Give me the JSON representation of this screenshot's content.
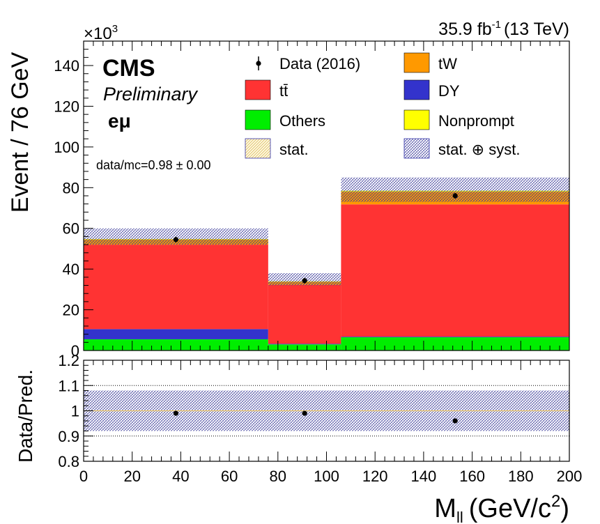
{
  "header": {
    "lumi_value": "35.9 fb",
    "lumi_exp": "-1",
    "energy": "(13 TeV)",
    "multiplier_prefix": "×10",
    "multiplier_exp": "3",
    "cms": "CMS",
    "preliminary": "Preliminary",
    "channel": "eμ",
    "ratio_text": "data/mc=0.98 ± 0.00"
  },
  "legend": [
    {
      "key": "data",
      "label": "Data (2016)",
      "style": "marker",
      "color": "#000000"
    },
    {
      "key": "tw",
      "label": "tW",
      "style": "fill",
      "color": "#ff9900"
    },
    {
      "key": "tt",
      "label": "tt̄",
      "style": "fill",
      "color": "#ff3333"
    },
    {
      "key": "dy",
      "label": "DY",
      "style": "fill",
      "color": "#3333cc"
    },
    {
      "key": "others",
      "label": "Others",
      "style": "fill",
      "color": "#00ee00"
    },
    {
      "key": "nonprompt",
      "label": "Nonprompt",
      "style": "fill",
      "color": "#ffff00"
    },
    {
      "key": "stat",
      "label": "stat.",
      "style": "hatch-yellow",
      "color": "#d4b24a"
    },
    {
      "key": "statsyst",
      "label": "stat. ⊕ syst.",
      "style": "hatch-blue",
      "color": "#3a3a9a"
    }
  ],
  "chart_data": [
    {
      "type": "bar",
      "stacked": true,
      "ylabel": "Event / 76 GeV",
      "y_multiplier": 1000,
      "ylim": [
        0,
        152
      ],
      "xlim": [
        0,
        200
      ],
      "yticks": [
        0,
        20,
        40,
        60,
        80,
        100,
        120,
        140
      ],
      "bins": [
        [
          0,
          76
        ],
        [
          76,
          106
        ],
        [
          106,
          200
        ]
      ],
      "series": [
        {
          "name": "Others",
          "color": "#00ee00",
          "values": [
            5.5,
            3.0,
            6.5
          ]
        },
        {
          "name": "DY",
          "color": "#3333cc",
          "values": [
            5.0,
            0.3,
            0.3
          ]
        },
        {
          "name": "tt̄",
          "color": "#ff3333",
          "values": [
            41.5,
            29.0,
            65.0
          ]
        },
        {
          "name": "tW",
          "color": "#ff9900",
          "values": [
            2.5,
            1.5,
            6.2
          ]
        },
        {
          "name": "Nonprompt",
          "color": "#ffff00",
          "values": [
            0.3,
            0.2,
            0.5
          ]
        }
      ],
      "syst_band": [
        [
          52.0,
          60.0
        ],
        [
          32.0,
          38.0
        ],
        [
          73.0,
          85.0
        ]
      ],
      "data_points": [
        {
          "x": 38,
          "y": 54.5
        },
        {
          "x": 91,
          "y": 34.3
        },
        {
          "x": 153,
          "y": 76.0
        }
      ]
    },
    {
      "type": "scatter",
      "ylabel": "Data/Pred.",
      "xlabel": "M",
      "xlabel_sub": "ll",
      "xlabel_unit": "(GeV/c",
      "xlabel_unit_exp": "2",
      "xlabel_close": ")",
      "ylim": [
        0.8,
        1.2
      ],
      "xlim": [
        0,
        200
      ],
      "yticks": [
        "0.8",
        "0.9",
        "1",
        "1.1",
        "1.2"
      ],
      "xticks": [
        "0",
        "20",
        "40",
        "60",
        "80",
        "100",
        "120",
        "140",
        "160",
        "180",
        "200"
      ],
      "syst_band": [
        0.92,
        1.08
      ],
      "stat_band": [
        0.998,
        1.002
      ],
      "points": [
        {
          "x": 38,
          "y": 0.99
        },
        {
          "x": 91,
          "y": 0.99
        },
        {
          "x": 153,
          "y": 0.96
        }
      ]
    }
  ]
}
